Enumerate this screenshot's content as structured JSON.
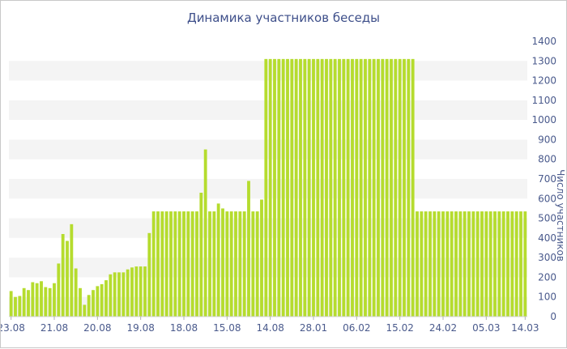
{
  "colors": {
    "bar": "#b5dc2e",
    "band": "#f4f4f4",
    "text": "#4a5a8c",
    "title": "#3e4f8a"
  },
  "chart_data": {
    "type": "bar",
    "title": "Динамика участников беседы",
    "xlabel": "",
    "ylabel": "Число участников",
    "ylim": [
      0,
      1400
    ],
    "yticks": [
      0,
      100,
      200,
      300,
      400,
      500,
      600,
      700,
      800,
      900,
      1000,
      1100,
      1200,
      1300,
      1400
    ],
    "grid": "alternating horizontal bands",
    "xtick_labels": [
      {
        "index": 0,
        "label": "23.08"
      },
      {
        "index": 10,
        "label": "21.08"
      },
      {
        "index": 20,
        "label": "20.08"
      },
      {
        "index": 30,
        "label": "19.08"
      },
      {
        "index": 40,
        "label": "18.08"
      },
      {
        "index": 50,
        "label": "15.08"
      },
      {
        "index": 60,
        "label": "14.08"
      },
      {
        "index": 70,
        "label": "28.01"
      },
      {
        "index": 80,
        "label": "06.02"
      },
      {
        "index": 90,
        "label": "15.02"
      },
      {
        "index": 100,
        "label": "24.02"
      },
      {
        "index": 110,
        "label": "05.03"
      },
      {
        "index": 119,
        "label": "14.03"
      }
    ],
    "values": [
      130,
      100,
      105,
      145,
      135,
      175,
      170,
      180,
      150,
      145,
      170,
      270,
      420,
      385,
      470,
      245,
      145,
      60,
      110,
      135,
      155,
      165,
      185,
      215,
      225,
      225,
      225,
      240,
      250,
      255,
      255,
      255,
      425,
      535,
      535,
      535,
      535,
      535,
      535,
      535,
      535,
      535,
      535,
      535,
      630,
      850,
      535,
      535,
      575,
      550,
      535,
      535,
      535,
      535,
      535,
      690,
      535,
      535,
      595,
      1310,
      1310,
      1310,
      1310,
      1310,
      1310,
      1310,
      1310,
      1310,
      1310,
      1310,
      1310,
      1310,
      1310,
      1310,
      1310,
      1310,
      1310,
      1310,
      1310,
      1310,
      1310,
      1310,
      1310,
      1310,
      1310,
      1310,
      1310,
      1310,
      1310,
      1310,
      1310,
      1310,
      1310,
      1310,
      535,
      535,
      535,
      535,
      535,
      535,
      535,
      535,
      535,
      535,
      535,
      535,
      535,
      535,
      535,
      535,
      535,
      535,
      535,
      535,
      535,
      535,
      535,
      535,
      535,
      535
    ]
  }
}
